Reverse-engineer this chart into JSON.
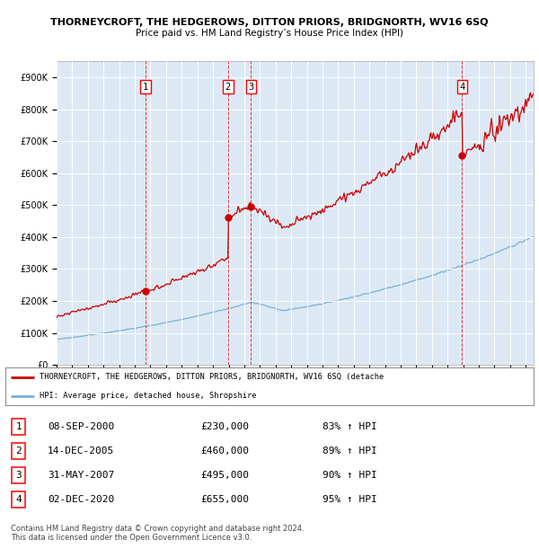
{
  "title": "THORNEYCROFT, THE HEDGEROWS, DITTON PRIORS, BRIDGNORTH, WV16 6SQ",
  "subtitle": "Price paid vs. HM Land Registry’s House Price Index (HPI)",
  "plot_bg_color": "#dce9f5",
  "ylim": [
    0,
    950000
  ],
  "yticks": [
    0,
    100000,
    200000,
    300000,
    400000,
    500000,
    600000,
    700000,
    800000,
    900000
  ],
  "ytick_labels": [
    "£0",
    "£100K",
    "£200K",
    "£300K",
    "£400K",
    "£500K",
    "£600K",
    "£700K",
    "£800K",
    "£900K"
  ],
  "red_line_color": "#cc0000",
  "blue_line_color": "#7bafd4",
  "sale_markers": [
    {
      "year": 2000.69,
      "price": 230000,
      "label": "1"
    },
    {
      "year": 2005.96,
      "price": 460000,
      "label": "2"
    },
    {
      "year": 2007.42,
      "price": 495000,
      "label": "3"
    },
    {
      "year": 2020.92,
      "price": 655000,
      "label": "4"
    }
  ],
  "legend_entries": [
    "THORNEYCROFT, THE HEDGEROWS, DITTON PRIORS, BRIDGNORTH, WV16 6SQ (detache",
    "HPI: Average price, detached house, Shropshire"
  ],
  "table_rows": [
    [
      "1",
      "08-SEP-2000",
      "£230,000",
      "83% ↑ HPI"
    ],
    [
      "2",
      "14-DEC-2005",
      "£460,000",
      "89% ↑ HPI"
    ],
    [
      "3",
      "31-MAY-2007",
      "£495,000",
      "90% ↑ HPI"
    ],
    [
      "4",
      "02-DEC-2020",
      "£655,000",
      "95% ↑ HPI"
    ]
  ],
  "footer": "Contains HM Land Registry data © Crown copyright and database right 2024.\nThis data is licensed under the Open Government Licence v3.0.",
  "xmin": 1995,
  "xmax": 2025.5
}
